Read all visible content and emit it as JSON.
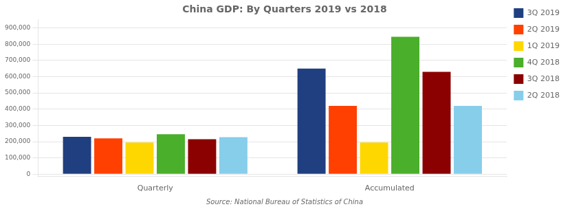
{
  "chart_data": {
    "type": "bar",
    "title": "China GDP: By Quarters 2019 vs 2018",
    "subtitle": "Source: National Bureau of Statistics of China",
    "categories": [
      "Quarterly",
      "Accumulated"
    ],
    "series": [
      {
        "name": "3Q 2019",
        "color": "#1F3F80",
        "values": [
          230000,
          650000
        ]
      },
      {
        "name": "2Q 2019",
        "color": "#FF4000",
        "values": [
          220000,
          420000
        ]
      },
      {
        "name": "1Q 2019",
        "color": "#FFD700",
        "values": [
          195000,
          195000
        ]
      },
      {
        "name": "4Q 2018",
        "color": "#4AAF2A",
        "values": [
          245000,
          845000
        ]
      },
      {
        "name": "3Q 2018",
        "color": "#8B0000",
        "values": [
          215000,
          630000
        ]
      },
      {
        "name": "2Q 2018",
        "color": "#87CEEB",
        "values": [
          228000,
          420000
        ]
      }
    ],
    "ylim": [
      -15000,
      950000
    ],
    "yticks": [
      0,
      {
        "value": 100000,
        "label": "100,000"
      },
      {
        "value": 200000,
        "label": "200,000"
      },
      {
        "value": 300000,
        "label": "300,000"
      },
      {
        "value": 400000,
        "label": "400,000"
      },
      {
        "value": 500000,
        "label": "500,000"
      },
      {
        "value": 600000,
        "label": "600,000"
      },
      {
        "value": 700000,
        "label": "700,000"
      },
      {
        "value": 800000,
        "label": "800,000"
      },
      {
        "value": 900000,
        "label": "900,000"
      }
    ],
    "grid": true,
    "legend": "right"
  }
}
